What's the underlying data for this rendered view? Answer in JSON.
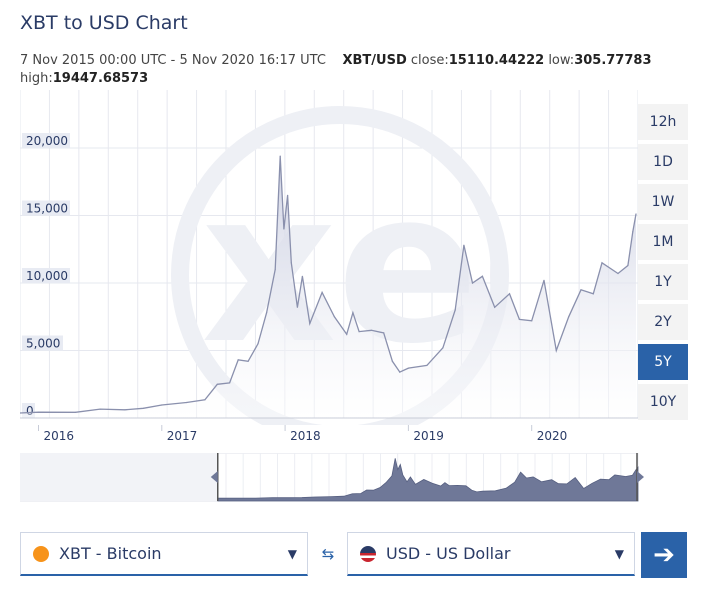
{
  "title": "XBT to USD Chart",
  "summary": {
    "range_text": "7 Nov 2015 00:00 UTC - 5 Nov 2020 16:17 UTC",
    "pair": "XBT/USD",
    "close_label": "close:",
    "close_value": "15110.44222",
    "low_label": "low:",
    "low_value": "305.77783",
    "high_label": "high:",
    "high_value": "19447.68573"
  },
  "range_buttons": [
    "12h",
    "1D",
    "1W",
    "1M",
    "1Y",
    "2Y",
    "5Y",
    "10Y"
  ],
  "active_range": "5Y",
  "chart_data": {
    "type": "area",
    "x_ticks": [
      "2016",
      "2017",
      "2018",
      "2019",
      "2020"
    ],
    "y_ticks": [
      "0",
      "5,000",
      "10,000",
      "15,000",
      "20,000"
    ],
    "ylim": [
      0,
      25000
    ],
    "grid": true,
    "series": [
      {
        "values": [
          [
            2015.85,
            370
          ],
          [
            2016.0,
            430
          ],
          [
            2016.3,
            420
          ],
          [
            2016.5,
            660
          ],
          [
            2016.7,
            610
          ],
          [
            2016.85,
            720
          ],
          [
            2017.0,
            960
          ],
          [
            2017.2,
            1150
          ],
          [
            2017.35,
            1350
          ],
          [
            2017.45,
            2500
          ],
          [
            2017.55,
            2600
          ],
          [
            2017.62,
            4300
          ],
          [
            2017.7,
            4200
          ],
          [
            2017.78,
            5500
          ],
          [
            2017.85,
            7800
          ],
          [
            2017.92,
            11000
          ],
          [
            2017.96,
            19400
          ],
          [
            2017.99,
            14000
          ],
          [
            2018.02,
            16500
          ],
          [
            2018.05,
            11500
          ],
          [
            2018.1,
            8200
          ],
          [
            2018.14,
            10500
          ],
          [
            2018.2,
            7000
          ],
          [
            2018.3,
            9300
          ],
          [
            2018.4,
            7500
          ],
          [
            2018.5,
            6200
          ],
          [
            2018.55,
            7800
          ],
          [
            2018.6,
            6400
          ],
          [
            2018.7,
            6500
          ],
          [
            2018.8,
            6300
          ],
          [
            2018.87,
            4200
          ],
          [
            2018.93,
            3400
          ],
          [
            2019.0,
            3700
          ],
          [
            2019.15,
            3900
          ],
          [
            2019.28,
            5200
          ],
          [
            2019.38,
            8000
          ],
          [
            2019.45,
            12800
          ],
          [
            2019.52,
            10000
          ],
          [
            2019.6,
            10500
          ],
          [
            2019.7,
            8200
          ],
          [
            2019.82,
            9200
          ],
          [
            2019.9,
            7300
          ],
          [
            2020.0,
            7200
          ],
          [
            2020.1,
            10200
          ],
          [
            2020.2,
            5000
          ],
          [
            2020.3,
            7500
          ],
          [
            2020.4,
            9500
          ],
          [
            2020.5,
            9200
          ],
          [
            2020.57,
            11500
          ],
          [
            2020.7,
            10700
          ],
          [
            2020.78,
            11300
          ],
          [
            2020.82,
            13800
          ],
          [
            2020.846,
            15110
          ]
        ]
      }
    ]
  },
  "navigator": {
    "handle_start_fraction": 0.32
  },
  "converter": {
    "from_label": "XBT - Bitcoin",
    "to_label": "USD - US Dollar",
    "swap_icon": "⇆",
    "go_icon": "➔",
    "caret": "▼"
  },
  "colors": {
    "accent": "#2a62a8",
    "title": "#2a3b66",
    "line": "#8a90ad",
    "fill_top": "#c9cde0",
    "bitcoin": "#f7931a"
  }
}
